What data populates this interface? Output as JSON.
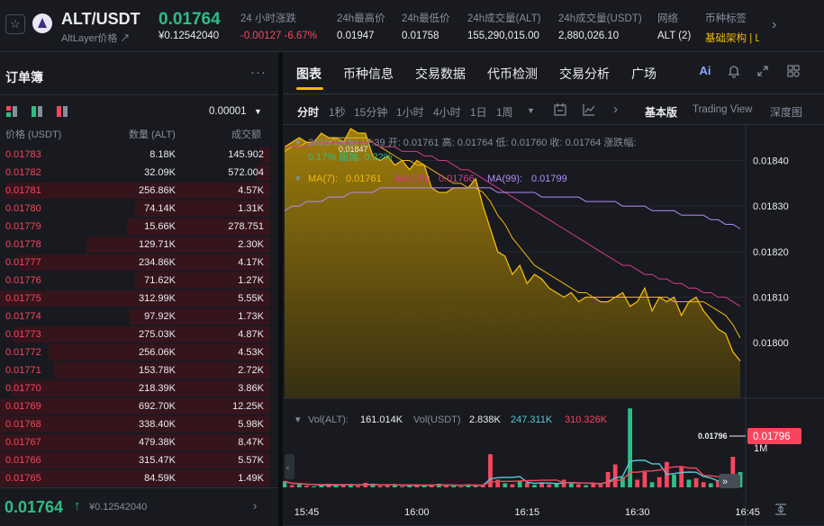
{
  "header": {
    "pair": "ALT/USDT",
    "subtitle": "AltLayer价格 ↗",
    "last_price": "0.01764",
    "last_price_usd": "¥0.12542040",
    "stats": [
      {
        "label": "24 小时涨跌",
        "value": "-0.00127 -6.67%",
        "color": "red"
      },
      {
        "label": "24h最高价",
        "value": "0.01947",
        "color": ""
      },
      {
        "label": "24h最低价",
        "value": "0.01758",
        "color": ""
      },
      {
        "label": "24h成交量(ALT)",
        "value": "155,290,015.00",
        "color": ""
      },
      {
        "label": "24h成交量(USDT)",
        "value": "2,880,026.10",
        "color": ""
      },
      {
        "label": "网络",
        "value": "ALT (2)",
        "color": ""
      },
      {
        "label": "币种标签",
        "value": "基础架构 | Laun",
        "color": "yellow"
      }
    ]
  },
  "orderbook": {
    "title": "订单簿",
    "tick_size": "0.00001",
    "col_price": "价格 (USDT)",
    "col_qty": "数量 (ALT)",
    "col_total": "成交额",
    "asks": [
      {
        "price": "0.01783",
        "qty": "8.18K",
        "total": "145.902",
        "depth": 0.04
      },
      {
        "price": "0.01782",
        "qty": "32.09K",
        "total": "572.004",
        "depth": 0.05
      },
      {
        "price": "0.01781",
        "qty": "256.86K",
        "total": "4.57K",
        "depth": 0.98
      },
      {
        "price": "0.01780",
        "qty": "74.14K",
        "total": "1.31K",
        "depth": 0.5
      },
      {
        "price": "0.01779",
        "qty": "15.66K",
        "total": "278.751",
        "depth": 0.53
      },
      {
        "price": "0.01778",
        "qty": "129.71K",
        "total": "2.30K",
        "depth": 0.68
      },
      {
        "price": "0.01777",
        "qty": "234.86K",
        "total": "4.17K",
        "depth": 0.93
      },
      {
        "price": "0.01776",
        "qty": "71.62K",
        "total": "1.27K",
        "depth": 0.5
      },
      {
        "price": "0.01775",
        "qty": "312.99K",
        "total": "5.55K",
        "depth": 1.0
      },
      {
        "price": "0.01774",
        "qty": "97.92K",
        "total": "1.73K",
        "depth": 0.52
      },
      {
        "price": "0.01773",
        "qty": "275.03K",
        "total": "4.87K",
        "depth": 0.95
      },
      {
        "price": "0.01772",
        "qty": "256.06K",
        "total": "4.53K",
        "depth": 0.82
      },
      {
        "price": "0.01771",
        "qty": "153.78K",
        "total": "2.72K",
        "depth": 0.8
      },
      {
        "price": "0.01770",
        "qty": "218.39K",
        "total": "3.86K",
        "depth": 0.96
      },
      {
        "price": "0.01769",
        "qty": "692.70K",
        "total": "12.25K",
        "depth": 1.0
      },
      {
        "price": "0.01768",
        "qty": "338.40K",
        "total": "5.98K",
        "depth": 1.0
      },
      {
        "price": "0.01767",
        "qty": "479.38K",
        "total": "8.47K",
        "depth": 1.0
      },
      {
        "price": "0.01766",
        "qty": "315.47K",
        "total": "5.57K",
        "depth": 1.0
      },
      {
        "price": "0.01765",
        "qty": "84.59K",
        "total": "1.49K",
        "depth": 1.0
      }
    ],
    "last_price": "0.01764",
    "last_price_usd": "¥0.12542040"
  },
  "chart_panel": {
    "tabs": [
      "图表",
      "币种信息",
      "交易数据",
      "代币检测",
      "交易分析",
      "广场"
    ],
    "ai_label": "Ai",
    "timeframes": [
      "分时",
      "1秒",
      "15分钟",
      "1小时",
      "4小时",
      "1日",
      "1周"
    ],
    "views": [
      "基本版",
      "Trading View",
      "深度图"
    ]
  },
  "chart_data": {
    "type": "area",
    "info_line1": "2025/10/30 17:39  开: 0.01761  高: 0.01764  低: 0.01760  收: 0.01764  涨跌幅:",
    "info_line2": "0.17%  振幅: 0.22%",
    "ma_line": "MA(7): 0.01761  MA(25): 0.01766  MA(99): 0.01799",
    "ma7_label": "MA(7):",
    "ma7_value": "0.01761",
    "ma25_label": "MA(25):",
    "ma25_value": "0.01766",
    "ma99_label": "MA(99):",
    "ma99_value": "0.01799",
    "high_label": "0.01847",
    "last_label": "0.01796",
    "ylim": [
      0.017878,
      0.018478
    ],
    "yticks": [
      "0.01840",
      "0.01830",
      "0.01820",
      "0.01810",
      "0.01800"
    ],
    "ytick_values": [
      0.0184,
      0.0183,
      0.0182,
      0.0181,
      0.018
    ],
    "xticks": [
      "15:45",
      "16:00",
      "16:15",
      "16:30",
      "16:45"
    ],
    "xtick_minutes": [
      45,
      60,
      75,
      90,
      105
    ],
    "x_start_minute": 42,
    "price": [
      0.01843,
      0.01844,
      0.01845,
      0.01844,
      0.01844,
      0.01846,
      0.01845,
      0.01845,
      0.01844,
      0.01847,
      0.01846,
      0.01846,
      0.01841,
      0.0184,
      0.01841,
      0.01839,
      0.0184,
      0.01838,
      0.0184,
      0.01839,
      0.01834,
      0.01833,
      0.01833,
      0.01834,
      0.01834,
      0.01834,
      0.01836,
      0.0183,
      0.01825,
      0.0182,
      0.01819,
      0.01815,
      0.01817,
      0.01813,
      0.01815,
      0.01814,
      0.01812,
      0.01811,
      0.0181,
      0.01811,
      0.01809,
      0.0181,
      0.0181,
      0.01809,
      0.01809,
      0.0181,
      0.01811,
      0.01808,
      0.01809,
      0.01812,
      0.01807,
      0.0181,
      0.01809,
      0.0181,
      0.01806,
      0.01809,
      0.0181,
      0.01807,
      0.01805,
      0.01803,
      0.01802,
      0.01798,
      0.01796
    ],
    "ma7": [
      0.01842,
      0.01843,
      0.01843,
      0.01844,
      0.01844,
      0.01844,
      0.01844,
      0.01845,
      0.01845,
      0.01845,
      0.01845,
      0.01845,
      0.01844,
      0.01843,
      0.01842,
      0.01841,
      0.0184,
      0.0184,
      0.01839,
      0.01839,
      0.01838,
      0.01837,
      0.01836,
      0.01835,
      0.01835,
      0.01834,
      0.01834,
      0.01833,
      0.01831,
      0.01828,
      0.01826,
      0.01823,
      0.01821,
      0.01819,
      0.01817,
      0.01816,
      0.01815,
      0.01814,
      0.01813,
      0.01812,
      0.01811,
      0.01811,
      0.0181,
      0.0181,
      0.0181,
      0.0181,
      0.0181,
      0.0181,
      0.0181,
      0.0181,
      0.0181,
      0.0181,
      0.0181,
      0.01809,
      0.01809,
      0.01809,
      0.01809,
      0.01809,
      0.01808,
      0.01807,
      0.01806,
      0.01804,
      0.01801
    ],
    "ma25": [
      0.01843,
      0.01843,
      0.01843,
      0.01843,
      0.01844,
      0.01844,
      0.01844,
      0.01844,
      0.01844,
      0.01844,
      0.01844,
      0.01844,
      0.01844,
      0.01843,
      0.01843,
      0.01843,
      0.01842,
      0.01842,
      0.01842,
      0.01841,
      0.01841,
      0.0184,
      0.0184,
      0.01839,
      0.01838,
      0.01838,
      0.01837,
      0.01836,
      0.01835,
      0.01834,
      0.01833,
      0.01832,
      0.01831,
      0.0183,
      0.01829,
      0.01828,
      0.01827,
      0.01826,
      0.01825,
      0.01824,
      0.01823,
      0.01822,
      0.01821,
      0.0182,
      0.01819,
      0.01818,
      0.01817,
      0.01817,
      0.01816,
      0.01815,
      0.01815,
      0.01814,
      0.01814,
      0.01813,
      0.01813,
      0.01812,
      0.01812,
      0.01811,
      0.01811,
      0.0181,
      0.0181,
      0.01809,
      0.01808
    ],
    "ma99": [
      0.01829,
      0.0183,
      0.0183,
      0.01831,
      0.01831,
      0.01831,
      0.01832,
      0.01832,
      0.01832,
      0.01833,
      0.01833,
      0.01833,
      0.01833,
      0.01834,
      0.01834,
      0.01834,
      0.01834,
      0.01834,
      0.01834,
      0.01834,
      0.01834,
      0.01834,
      0.01834,
      0.01834,
      0.01834,
      0.01834,
      0.01834,
      0.01834,
      0.01834,
      0.01833,
      0.01833,
      0.01833,
      0.01833,
      0.01833,
      0.01833,
      0.01832,
      0.01832,
      0.01832,
      0.01832,
      0.01832,
      0.01832,
      0.01831,
      0.01831,
      0.01831,
      0.01831,
      0.01831,
      0.0183,
      0.0183,
      0.0183,
      0.0183,
      0.01829,
      0.01829,
      0.01829,
      0.01829,
      0.01828,
      0.01828,
      0.01828,
      0.01828,
      0.01827,
      0.01827,
      0.01826,
      0.01826,
      0.01825
    ],
    "vol_label": "Vol(ALT):",
    "vol_alt": "161.014K",
    "vol_usdt_label": "Vol(USDT)",
    "vol_usdt": "2.838K",
    "vol_ma_cyan": "247.311K",
    "vol_ma_red": "310.326K",
    "vol_tick": "1M",
    "vol_max": 1500000,
    "volume": [
      120000,
      40000,
      60000,
      30000,
      20000,
      50000,
      70000,
      40000,
      60000,
      50000,
      30000,
      90000,
      60000,
      30000,
      40000,
      50000,
      20000,
      60000,
      40000,
      30000,
      50000,
      70000,
      40000,
      30000,
      20000,
      60000,
      50000,
      40000,
      650000,
      150000,
      80000,
      60000,
      120000,
      90000,
      50000,
      100000,
      60000,
      70000,
      150000,
      90000,
      60000,
      40000,
      80000,
      50000,
      300000,
      450000,
      200000,
      1550000,
      150000,
      300000,
      100000,
      200000,
      500000,
      250000,
      400000,
      150000,
      180000,
      100000,
      80000,
      120000,
      90000,
      600000,
      300000
    ],
    "vol_up": [
      true,
      false,
      true,
      false,
      true,
      true,
      false,
      true,
      false,
      true,
      false,
      false,
      true,
      false,
      false,
      true,
      false,
      true,
      false,
      true,
      false,
      true,
      false,
      true,
      false,
      true,
      false,
      false,
      false,
      false,
      true,
      false,
      true,
      false,
      true,
      false,
      false,
      true,
      false,
      true,
      false,
      true,
      false,
      false,
      false,
      false,
      true,
      true,
      false,
      false,
      true,
      false,
      false,
      true,
      false,
      true,
      false,
      false,
      true,
      false,
      false,
      false,
      true
    ]
  }
}
